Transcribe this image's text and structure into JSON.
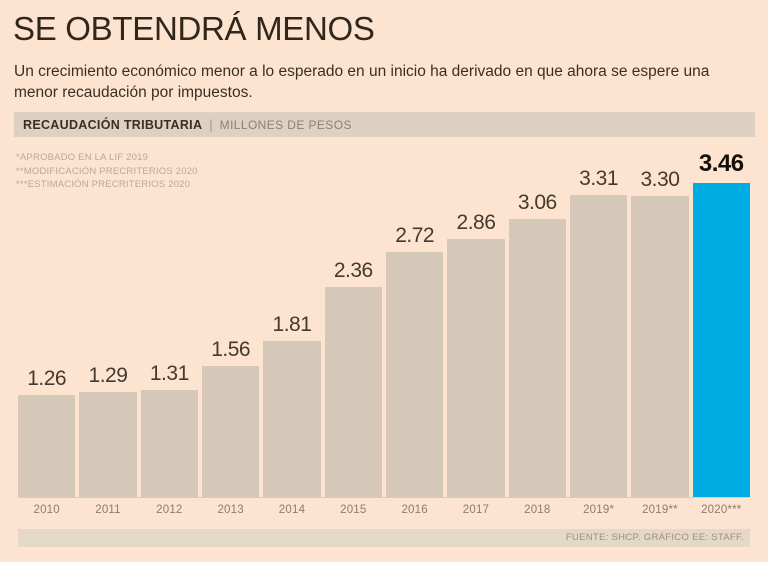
{
  "title": "SE OBTENDRÁ MENOS",
  "subtitle": "Un crecimiento económico menor a lo esperado en un inicio ha derivado en que ahora se espere una menor recaudación por impuestos.",
  "kicker": {
    "label": "RECAUDACIÓN TRIBUTARIA",
    "separator": "|",
    "units": "MILLONES DE PESOS"
  },
  "footnotes": [
    "*APROBADO EN LA LIF 2019",
    "**MODIFICACIÓN PRECRITERIOS 2020",
    "***ESTIMACIÓN PRECRITERIOS 2020"
  ],
  "source": "FUENTE: SHCP. GRÁFICO EE: STAFF.",
  "colors": {
    "background": "#fce4d0",
    "bar": "#d5c8b8",
    "highlight_bar": "#00ace4",
    "title_ink": "#30261c",
    "body_ink": "#3b2f23",
    "kicker_bg": "#dcd1c2",
    "kicker_units_ink": "#8e8071",
    "footnote_ink": "#bba896",
    "value_ink": "#46392e",
    "year_ink": "#8c7d6e",
    "source_bg": "#e4d8c6",
    "source_ink": "#a28f77"
  },
  "chart_data": {
    "type": "bar",
    "title": "RECAUDACIÓN TRIBUTARIA",
    "units": "MILLONES DE PESOS",
    "categories": [
      "2010",
      "2011",
      "2012",
      "2013",
      "2014",
      "2015",
      "2016",
      "2017",
      "2018",
      "2019*",
      "2019**",
      "2020***"
    ],
    "values": [
      1.26,
      1.29,
      1.31,
      1.56,
      1.81,
      2.36,
      2.72,
      2.86,
      3.06,
      3.31,
      3.3,
      3.46
    ],
    "value_labels": [
      "1.26",
      "1.29",
      "1.31",
      "1.56",
      "1.81",
      "2.36",
      "2.72",
      "2.86",
      "3.06",
      "3.31",
      "3.30",
      "3.46"
    ],
    "highlight_index": 11,
    "ylim": [
      0,
      3.46
    ],
    "grid": false,
    "legend": false,
    "data_labels": "above-bars",
    "orientation": "vertical"
  }
}
